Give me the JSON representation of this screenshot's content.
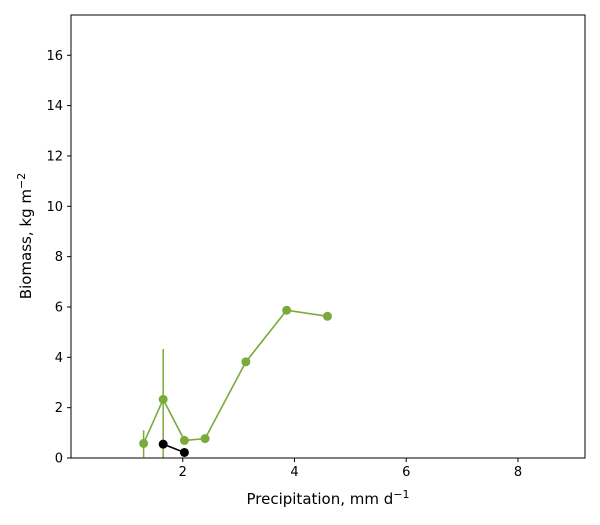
{
  "chart_data": {
    "type": "line",
    "title": "",
    "xlabel": "Precipitation,  mm d",
    "xlabel_sup": "−1",
    "ylabel": "Biomass,  kg m",
    "ylabel_sup": "−2",
    "xlim": [
      0.0,
      9.2
    ],
    "ylim": [
      0,
      17.6
    ],
    "xticks": [
      2,
      4,
      6,
      8
    ],
    "yticks": [
      0,
      2,
      4,
      6,
      8,
      10,
      12,
      14,
      16
    ],
    "grid": false,
    "series": [
      {
        "color": "#7aab3a",
        "x": [
          1.3,
          1.65,
          2.03,
          2.4,
          3.13,
          3.86,
          4.59
        ],
        "y": [
          0.58,
          2.33,
          0.7,
          0.77,
          3.82,
          5.87,
          5.63
        ],
        "err_low": [
          0.55,
          2.33,
          0,
          0,
          0,
          0,
          0
        ],
        "err_high": [
          0.52,
          2.0,
          0,
          0,
          0,
          0,
          0
        ]
      },
      {
        "color": "#000000",
        "x": [
          1.65,
          2.03
        ],
        "y": [
          0.55,
          0.22
        ],
        "err_low": [
          0,
          0
        ],
        "err_high": [
          0,
          0
        ]
      }
    ]
  }
}
